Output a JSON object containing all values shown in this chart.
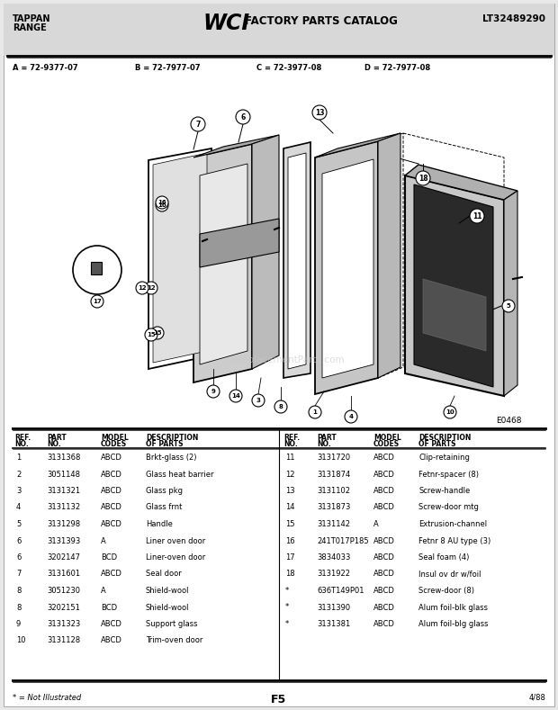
{
  "title_left1": "TAPPAN",
  "title_left2": "RANGE",
  "title_center": "WCI FACTORY PARTS CATALOG",
  "title_right": "LT32489290",
  "model_A": "A = 72-9377-07",
  "model_B": "B = 72-7977-07",
  "model_C": "C = 72-3977-08",
  "model_D": "D = 72-7977-08",
  "diagram_label": "E0468",
  "page_label": "F5",
  "date_label": "4/88",
  "footnote": "* = Not Illustrated",
  "parts_left": [
    [
      "1",
      "3131368",
      "ABCD",
      "Brkt-glass (2)"
    ],
    [
      "2",
      "3051148",
      "ABCD",
      "Glass heat barrier"
    ],
    [
      "3",
      "3131321",
      "ABCD",
      "Glass pkg"
    ],
    [
      "4",
      "3131132",
      "ABCD",
      "Glass frnt"
    ],
    [
      "5",
      "3131298",
      "ABCD",
      "Handle"
    ],
    [
      "6",
      "3131393",
      "A",
      "Liner oven door"
    ],
    [
      "6",
      "3202147",
      "BCD",
      "Liner-oven door"
    ],
    [
      "7",
      "3131601",
      "ABCD",
      "Seal door"
    ],
    [
      "8",
      "3051230",
      "A",
      "Shield-wool"
    ],
    [
      "8",
      "3202151",
      "BCD",
      "Shield-wool"
    ],
    [
      "9",
      "3131323",
      "ABCD",
      "Support glass"
    ],
    [
      "10",
      "3131128",
      "ABCD",
      "Trim-oven door"
    ]
  ],
  "parts_right": [
    [
      "11",
      "3131720",
      "ABCD",
      "Clip-retaining"
    ],
    [
      "12",
      "3131874",
      "ABCD",
      "Fetnr-spacer (8)"
    ],
    [
      "13",
      "3131102",
      "ABCD",
      "Screw-handle"
    ],
    [
      "14",
      "3131873",
      "ABCD",
      "Screw-door mtg"
    ],
    [
      "15",
      "3131142",
      "A",
      "Extrusion-channel"
    ],
    [
      "16",
      "241T017P185",
      "ABCD",
      "Fetnr 8 AU type (3)"
    ],
    [
      "17",
      "3834033",
      "ABCD",
      "Seal foam (4)"
    ],
    [
      "18",
      "3131922",
      "ABCD",
      "Insul ov dr w/foil"
    ],
    [
      "*",
      "636T149P01",
      "ABCD",
      "Screw-door (8)"
    ],
    [
      "*",
      "3131390",
      "ABCD",
      "Alum foil-blk glass"
    ],
    [
      "*",
      "3131381",
      "ABCD",
      "Alum foil-blg glass"
    ]
  ],
  "bg_color": "#f0f0f0",
  "page_bg": "#e8e8e8"
}
